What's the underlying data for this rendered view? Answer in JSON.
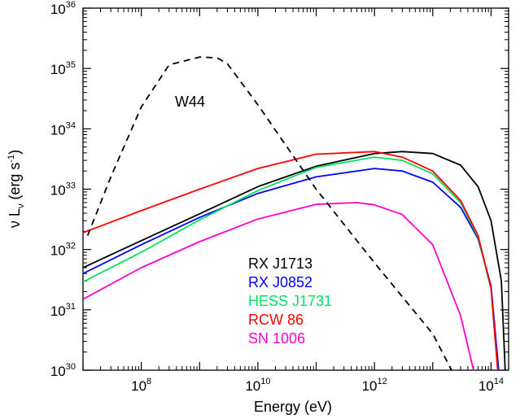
{
  "chart_data": {
    "type": "line",
    "title": "",
    "xlabel": "Energy (eV)",
    "ylabel": "ν L ν (erg s-1)",
    "x_scale": "log",
    "y_scale": "log",
    "xlim": [
      10000000.0,
      200000000000000.0
    ],
    "ylim": [
      1e+30,
      1e+36
    ],
    "grid": false,
    "legend_position": "lower-middle",
    "x_ticks": [
      {
        "mantissa": "10",
        "exponent": "8",
        "value": 100000000.0
      },
      {
        "mantissa": "10",
        "exponent": "10",
        "value": 10000000000.0
      },
      {
        "mantissa": "10",
        "exponent": "12",
        "value": 1000000000000.0
      },
      {
        "mantissa": "10",
        "exponent": "14",
        "value": 100000000000000.0
      }
    ],
    "y_ticks": [
      {
        "mantissa": "10",
        "exponent": "30",
        "value": 1e+30
      },
      {
        "mantissa": "10",
        "exponent": "31",
        "value": 1e+31
      },
      {
        "mantissa": "10",
        "exponent": "32",
        "value": 1e+32
      },
      {
        "mantissa": "10",
        "exponent": "33",
        "value": 1e+33
      },
      {
        "mantissa": "10",
        "exponent": "34",
        "value": 1e+34
      },
      {
        "mantissa": "10",
        "exponent": "35",
        "value": 1e+35
      },
      {
        "mantissa": "10",
        "exponent": "36",
        "value": 1e+36
      }
    ],
    "series": [
      {
        "name": "RX J1713",
        "color": "#000000",
        "dash": false,
        "x": [
          10000000.0,
          100000000.0,
          1000000000.0,
          10000000000.0,
          100000000000.0,
          1000000000000.0,
          3000000000000.0,
          10000000000000.0,
          30000000000000.0,
          60000000000000.0,
          100000000000000.0,
          150000000000000.0,
          175000000000000.0
        ],
        "y": [
          5e+31,
          1.4e+32,
          3.9e+32,
          1.1e+33,
          2.4e+33,
          3.9e+33,
          4.2e+33,
          3.9e+33,
          2.5e+33,
          1.1e+33,
          3e+32,
          3e+31,
          1e+30
        ]
      },
      {
        "name": "RX J0852",
        "color": "#0000ff",
        "dash": false,
        "x": [
          10000000.0,
          100000000.0,
          1000000000.0,
          10000000000.0,
          100000000000.0,
          1000000000000.0,
          3000000000000.0,
          10000000000000.0,
          30000000000000.0,
          60000000000000.0,
          100000000000000.0,
          135000000000000.0
        ],
        "y": [
          4e+31,
          1.2e+32,
          3.4e+32,
          8.5e+32,
          1.6e+33,
          2.2e+33,
          2e+33,
          1.3e+33,
          5e+32,
          1.5e+32,
          2.5e+31,
          1e+30
        ]
      },
      {
        "name": "HESS J1731",
        "color": "#00e060",
        "dash": false,
        "x": [
          10000000.0,
          100000000.0,
          1000000000.0,
          10000000000.0,
          100000000000.0,
          1000000000000.0,
          3000000000000.0,
          10000000000000.0,
          30000000000000.0,
          60000000000000.0,
          100000000000000.0,
          130000000000000.0
        ],
        "y": [
          2.9e+31,
          9e+31,
          3.1e+32,
          9.5e+32,
          2.3e+33,
          3.4e+33,
          3e+33,
          1.8e+33,
          6e+32,
          1.6e+32,
          2.2e+31,
          1e+30
        ]
      },
      {
        "name": "RCW 86",
        "color": "#ff0000",
        "dash": false,
        "x": [
          10000000.0,
          100000000.0,
          1000000000.0,
          10000000000.0,
          100000000000.0,
          1000000000000.0,
          3000000000000.0,
          10000000000000.0,
          30000000000000.0,
          60000000000000.0,
          100000000000000.0,
          130000000000000.0
        ],
        "y": [
          1.9e+32,
          4.4e+32,
          1e+33,
          2.2e+33,
          3.8e+33,
          4.2e+33,
          3.4e+33,
          2e+33,
          6.5e+32,
          1.7e+32,
          2.3e+31,
          1e+30
        ]
      },
      {
        "name": "SN 1006",
        "color": "#ff00cc",
        "dash": false,
        "x": [
          10000000.0,
          100000000.0,
          1000000000.0,
          10000000000.0,
          100000000000.0,
          500000000000.0,
          1000000000000.0,
          3000000000000.0,
          10000000000000.0,
          30000000000000.0,
          50000000000000.0
        ],
        "y": [
          1.5e+31,
          5e+31,
          1.35e+32,
          3.2e+32,
          5.6e+32,
          6e+32,
          5.5e+32,
          3.8e+32,
          1.2e+32,
          8e+30,
          1e+30
        ]
      },
      {
        "name": "W44",
        "color": "#000000",
        "dash": true,
        "x": [
          12000000.0,
          30000000.0,
          100000000.0,
          300000000.0,
          1000000000.0,
          2000000000.0,
          3000000000.0,
          10000000000.0,
          100000000000.0,
          1000000000000.0,
          10000000000000.0,
          21000000000000.0
        ],
        "y": [
          1.7e+32,
          1.6e+33,
          2.3e+34,
          1.15e+35,
          1.55e+35,
          1.5e+35,
          1.2e+35,
          2.5e+34,
          1e+33,
          6e+31,
          4e+30,
          1e+30
        ]
      }
    ],
    "annotations": [
      {
        "text": "W44"
      }
    ]
  }
}
